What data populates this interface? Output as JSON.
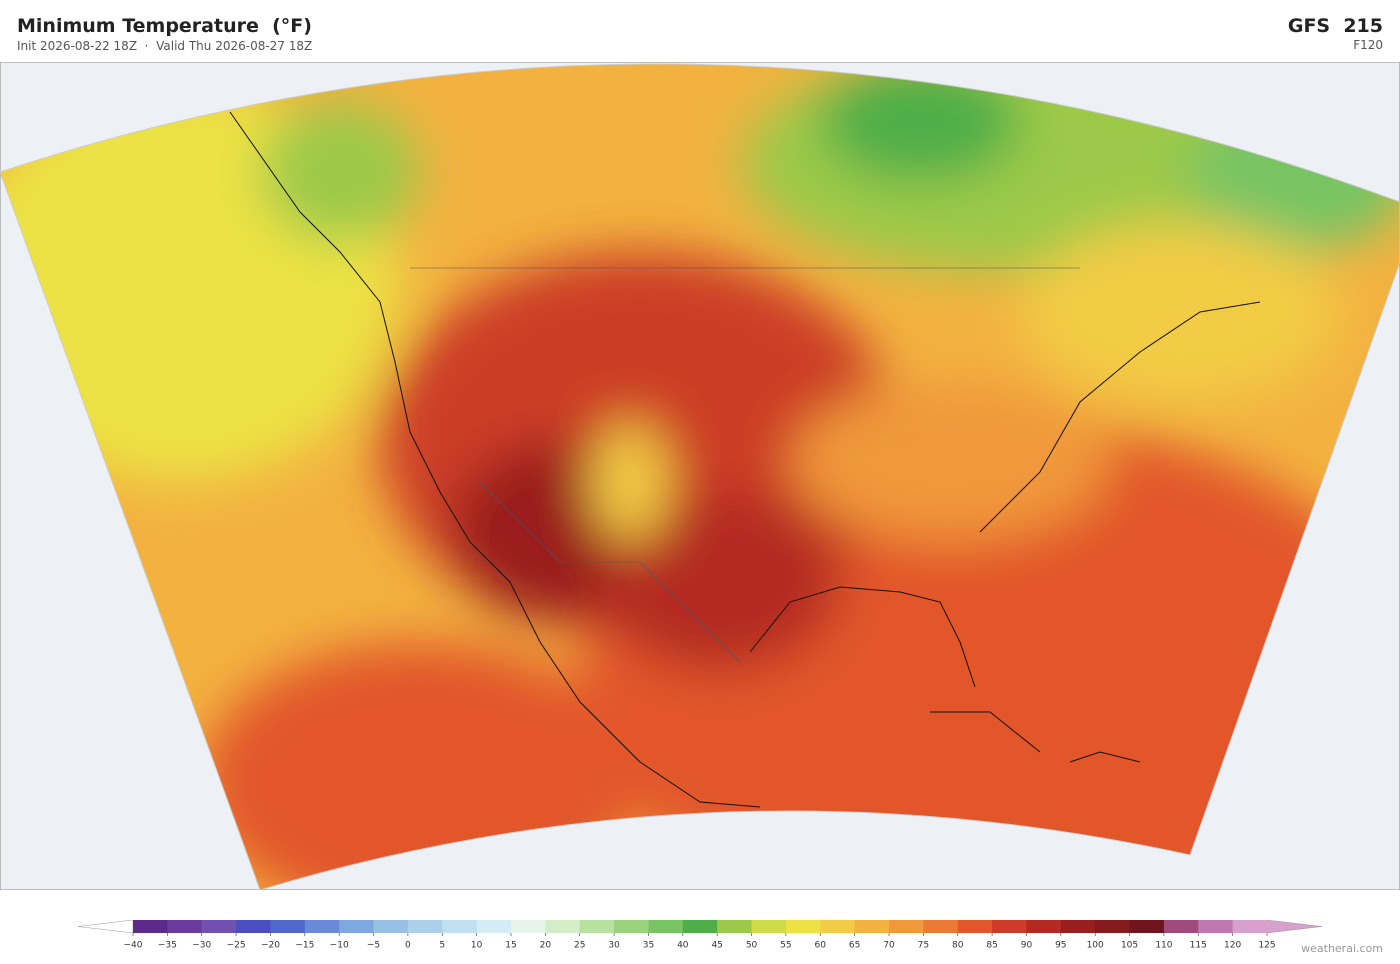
{
  "header": {
    "title": "Minimum Temperature  (°F)",
    "subtitle": "Init 2026-08-22 18Z  ·  Valid Thu 2026-08-27 18Z",
    "model": "GFS  215",
    "forecast_hour": "F120"
  },
  "colorbar": {
    "ticks": [
      {
        "value": -40,
        "label": "−40"
      },
      {
        "value": -35,
        "label": "−35"
      },
      {
        "value": -30,
        "label": "−30"
      },
      {
        "value": -25,
        "label": "−25"
      },
      {
        "value": -20,
        "label": "−20"
      },
      {
        "value": -15,
        "label": "−15"
      },
      {
        "value": -10,
        "label": "−10"
      },
      {
        "value": -5,
        "label": "−5"
      },
      0,
      5,
      10,
      15,
      20,
      25,
      30,
      35,
      40,
      45,
      50,
      55,
      60,
      65,
      70,
      75,
      80,
      85,
      90,
      95,
      100,
      105,
      110,
      115,
      120,
      125
    ],
    "colors": [
      "#5b2a8a",
      "#6a3a9e",
      "#7050b0",
      "#4b4ec0",
      "#5068cc",
      "#6a8ad8",
      "#80a8e0",
      "#98c0e4",
      "#acd0ea",
      "#c0e0f0",
      "#d4ecf4",
      "#e6f4ec",
      "#d4ecc8",
      "#b8e0a0",
      "#9ad27e",
      "#78c464",
      "#4eae4a",
      "#9cc94a",
      "#cedb48",
      "#ece244",
      "#f2cc44",
      "#f3b240",
      "#f0983a",
      "#ea7a34",
      "#e2572c",
      "#cc3c28",
      "#b42a22",
      "#9a1e1e",
      "#861a1c",
      "#701420",
      "#a04a7c",
      "#c078b0",
      "#d8a0cc"
    ],
    "extend_low_color": "#ffffff",
    "extend_high_color": "#d8a0cc"
  },
  "credit": "weatherai.com"
}
